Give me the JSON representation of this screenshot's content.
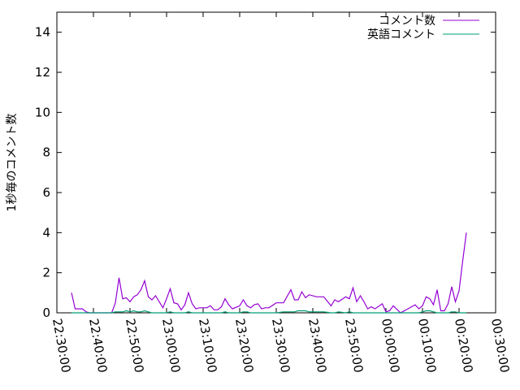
{
  "chart_data": {
    "type": "line",
    "title": "",
    "xlabel": "",
    "ylabel": "1秒毎のコメント数",
    "ylim": [
      0,
      15
    ],
    "xlim": [
      "22:30:00",
      "00:30:00"
    ],
    "yticks": [
      "0",
      "2",
      "4",
      "6",
      "8",
      "10",
      "12",
      "14"
    ],
    "xticks": [
      "22:30:00",
      "22:40:00",
      "22:50:00",
      "23:00:00",
      "23:10:00",
      "23:20:00",
      "23:30:00",
      "23:40:00",
      "23:50:00",
      "00:00:00",
      "00:10:00",
      "00:20:00",
      "00:30:00"
    ],
    "grid": false,
    "legend_position": "top-right",
    "x": [
      "22:34",
      "22:35",
      "22:37",
      "22:38",
      "22:39",
      "22:42",
      "22:45",
      "22:46",
      "22:47",
      "22:48",
      "22:49",
      "22:50",
      "22:51",
      "22:52",
      "22:53",
      "22:54",
      "22:55",
      "22:56",
      "22:57",
      "22:59",
      "23:00",
      "23:01",
      "23:02",
      "23:03",
      "23:04",
      "23:05",
      "23:06",
      "23:07",
      "23:08",
      "23:09",
      "23:11",
      "23:12",
      "23:13",
      "23:14",
      "23:15",
      "23:16",
      "23:17",
      "23:18",
      "23:20",
      "23:21",
      "23:22",
      "23:23",
      "23:24",
      "23:25",
      "23:26",
      "23:27",
      "23:28",
      "23:30",
      "23:32",
      "23:34",
      "23:35",
      "23:36",
      "23:37",
      "23:38",
      "23:39",
      "23:41",
      "23:43",
      "23:45",
      "23:46",
      "23:47",
      "23:49",
      "23:50",
      "23:51",
      "23:52",
      "23:53",
      "23:54",
      "23:55",
      "23:56",
      "23:57",
      "23:59",
      "00:00",
      "00:01",
      "00:02",
      "00:04",
      "00:06",
      "00:08",
      "00:09",
      "00:10",
      "00:11",
      "00:12",
      "00:13",
      "00:14",
      "00:15",
      "00:16",
      "00:17",
      "00:18",
      "00:19",
      "00:20",
      "00:21",
      "00:22"
    ],
    "series": [
      {
        "name": "コメント数",
        "color": "#9400d3",
        "values": [
          1.0,
          0.2,
          0.2,
          0.05,
          0,
          0,
          0,
          0.5,
          1.75,
          0.7,
          0.75,
          0.55,
          0.8,
          0.9,
          1.15,
          1.6,
          0.8,
          0.65,
          0.85,
          0.25,
          0.7,
          1.2,
          0.5,
          0.45,
          0.15,
          0.4,
          1.0,
          0.45,
          0.2,
          0.25,
          0.25,
          0.35,
          0.15,
          0.15,
          0.3,
          0.7,
          0.4,
          0.2,
          0.35,
          0.65,
          0.35,
          0.25,
          0.4,
          0.45,
          0.2,
          0.25,
          0.25,
          0.5,
          0.5,
          1.15,
          0.65,
          0.65,
          1.05,
          0.75,
          0.9,
          0.8,
          0.8,
          0.35,
          0.65,
          0.55,
          0.8,
          0.7,
          1.25,
          0.55,
          0.85,
          0.55,
          0.2,
          0.3,
          0.2,
          0.45,
          0.05,
          0.1,
          0.35,
          0,
          0.2,
          0.4,
          0.2,
          0.35,
          0.8,
          0.7,
          0.4,
          1.15,
          0.1,
          0.1,
          0.45,
          1.3,
          0.55,
          1.1,
          2.6,
          4.0
        ]
      },
      {
        "name": "英語コメント",
        "color": "#009e73",
        "values": [
          0,
          0,
          0,
          0,
          0,
          0,
          0,
          0.05,
          0.05,
          0.05,
          0.1,
          0.05,
          0.1,
          0.05,
          0.05,
          0.1,
          0.05,
          0,
          0,
          0,
          0,
          0.05,
          0,
          0,
          0,
          0,
          0.05,
          0,
          0,
          0,
          0,
          0,
          0,
          0,
          0,
          0.05,
          0,
          0,
          0,
          0.05,
          0.05,
          0,
          0,
          0,
          0,
          0,
          0,
          0,
          0.05,
          0.05,
          0.05,
          0.1,
          0.1,
          0.1,
          0.05,
          0.05,
          0.05,
          0,
          0,
          0.05,
          0,
          0.05,
          0,
          0,
          0,
          0,
          0,
          0,
          0,
          0,
          0,
          0,
          0,
          0,
          0,
          0,
          0,
          0.05,
          0.1,
          0.1,
          0.05,
          0,
          0,
          0,
          0,
          0.05,
          0.05,
          0,
          0,
          0
        ]
      }
    ]
  }
}
